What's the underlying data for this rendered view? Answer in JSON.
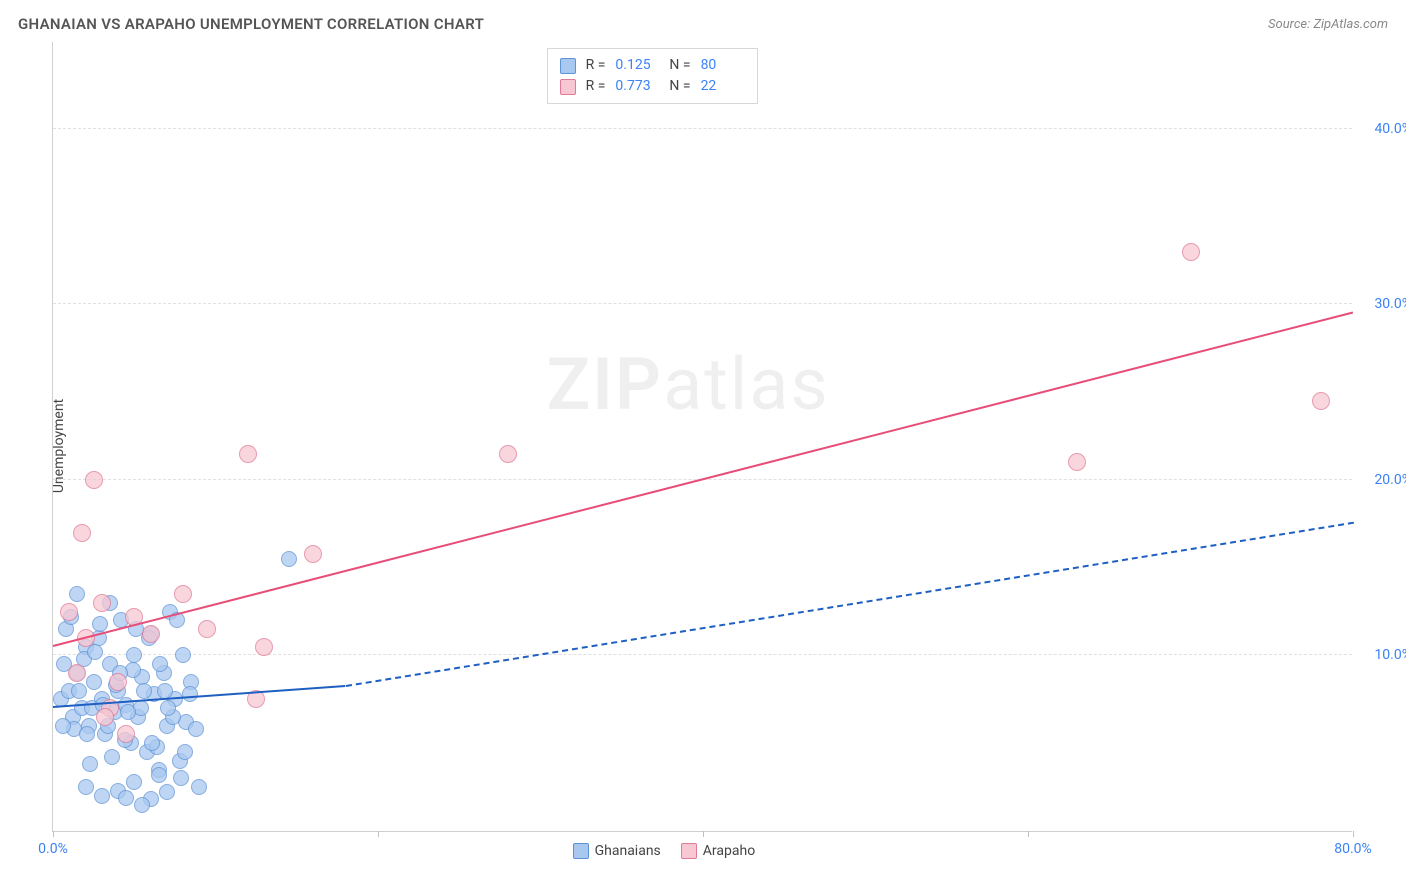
{
  "header": {
    "title": "GHANAIAN VS ARAPAHO UNEMPLOYMENT CORRELATION CHART",
    "source_prefix": "Source: ",
    "source_name": "ZipAtlas.com"
  },
  "watermark": {
    "part1": "ZIP",
    "part2": "atlas"
  },
  "axes": {
    "y_label": "Unemployment",
    "x_min": 0,
    "x_max": 80,
    "y_min": 0,
    "y_max": 45,
    "y_ticks": [
      10,
      20,
      30,
      40
    ],
    "y_tick_labels": [
      "10.0%",
      "20.0%",
      "30.0%",
      "40.0%"
    ],
    "x_ticks": [
      0,
      20,
      40,
      60,
      80
    ],
    "x_tick_labels_shown": {
      "0": "0.0%",
      "80": "80.0%"
    }
  },
  "series": {
    "ghanaians": {
      "label": "Ghanaians",
      "fill": "#a9c8f0",
      "stroke": "#5e93d6",
      "line_color": "#1e5fc2",
      "marker_r": 8,
      "R": "0.125",
      "N": "80",
      "trend": {
        "x1": 0,
        "y1": 7.0,
        "x2_solid": 18,
        "y2_solid": 8.2,
        "x2": 80,
        "y2": 17.5,
        "dashed_after_solid": true
      },
      "points": [
        [
          0.5,
          7.5
        ],
        [
          1.0,
          8.0
        ],
        [
          1.2,
          6.5
        ],
        [
          1.5,
          9.0
        ],
        [
          1.8,
          7.0
        ],
        [
          2.0,
          10.5
        ],
        [
          2.2,
          6.0
        ],
        [
          2.5,
          8.5
        ],
        [
          2.8,
          11.0
        ],
        [
          3.0,
          7.5
        ],
        [
          3.2,
          5.5
        ],
        [
          3.5,
          9.5
        ],
        [
          3.8,
          6.8
        ],
        [
          4.0,
          8.0
        ],
        [
          4.2,
          12.0
        ],
        [
          4.5,
          7.2
        ],
        [
          4.8,
          5.0
        ],
        [
          5.0,
          10.0
        ],
        [
          5.2,
          6.5
        ],
        [
          5.5,
          8.8
        ],
        [
          5.8,
          4.5
        ],
        [
          6.0,
          11.2
        ],
        [
          6.2,
          7.8
        ],
        [
          6.5,
          3.5
        ],
        [
          6.8,
          9.0
        ],
        [
          7.0,
          6.0
        ],
        [
          7.2,
          12.5
        ],
        [
          7.5,
          7.5
        ],
        [
          7.8,
          4.0
        ],
        [
          8.0,
          10.0
        ],
        [
          8.2,
          6.2
        ],
        [
          8.5,
          8.5
        ],
        [
          0.8,
          11.5
        ],
        [
          1.3,
          5.8
        ],
        [
          1.9,
          9.8
        ],
        [
          2.4,
          7.0
        ],
        [
          2.9,
          11.8
        ],
        [
          3.4,
          6.0
        ],
        [
          3.9,
          8.3
        ],
        [
          4.4,
          5.2
        ],
        [
          4.9,
          9.2
        ],
        [
          5.4,
          7.0
        ],
        [
          5.9,
          11.0
        ],
        [
          6.4,
          4.8
        ],
        [
          6.9,
          8.0
        ],
        [
          7.4,
          6.5
        ],
        [
          7.9,
          3.0
        ],
        [
          8.4,
          7.8
        ],
        [
          0.6,
          6.0
        ],
        [
          1.1,
          12.2
        ],
        [
          1.6,
          8.0
        ],
        [
          2.1,
          5.5
        ],
        [
          2.6,
          10.2
        ],
        [
          3.1,
          7.2
        ],
        [
          3.6,
          4.2
        ],
        [
          4.1,
          9.0
        ],
        [
          4.6,
          6.8
        ],
        [
          5.1,
          11.5
        ],
        [
          5.6,
          8.0
        ],
        [
          6.1,
          5.0
        ],
        [
          6.6,
          9.5
        ],
        [
          7.1,
          7.0
        ],
        [
          7.6,
          12.0
        ],
        [
          8.1,
          4.5
        ],
        [
          2.0,
          2.5
        ],
        [
          3.0,
          2.0
        ],
        [
          4.0,
          2.3
        ],
        [
          5.0,
          2.8
        ],
        [
          6.0,
          1.8
        ],
        [
          7.0,
          2.2
        ],
        [
          5.5,
          1.5
        ],
        [
          4.5,
          1.9
        ],
        [
          14.5,
          15.5
        ],
        [
          8.8,
          5.8
        ],
        [
          9.0,
          2.5
        ],
        [
          3.5,
          13.0
        ],
        [
          1.5,
          13.5
        ],
        [
          0.7,
          9.5
        ],
        [
          2.3,
          3.8
        ],
        [
          6.5,
          3.2
        ]
      ]
    },
    "arapaho": {
      "label": "Arapaho",
      "fill": "#f7c7d3",
      "stroke": "#e07a96",
      "line_color": "#e84d78",
      "marker_r": 9,
      "R": "0.773",
      "N": "22",
      "trend": {
        "x1": 0,
        "y1": 10.5,
        "x2": 80,
        "y2": 29.5,
        "dashed_after_solid": false
      },
      "points": [
        [
          1.0,
          12.5
        ],
        [
          1.5,
          9.0
        ],
        [
          2.0,
          11.0
        ],
        [
          3.0,
          13.0
        ],
        [
          3.5,
          7.0
        ],
        [
          4.0,
          8.5
        ],
        [
          5.0,
          12.2
        ],
        [
          6.0,
          11.2
        ],
        [
          8.0,
          13.5
        ],
        [
          9.5,
          11.5
        ],
        [
          2.5,
          20.0
        ],
        [
          1.8,
          17.0
        ],
        [
          12.0,
          21.5
        ],
        [
          13.0,
          10.5
        ],
        [
          12.5,
          7.5
        ],
        [
          16.0,
          15.8
        ],
        [
          28.0,
          21.5
        ],
        [
          63.0,
          21.0
        ],
        [
          70.0,
          33.0
        ],
        [
          78.0,
          24.5
        ],
        [
          3.2,
          6.5
        ],
        [
          4.5,
          5.5
        ]
      ]
    }
  },
  "legend_bottom": [
    "Ghanaians",
    "Arapaho"
  ],
  "colors": {
    "grid": "#e0e0e0",
    "axis": "#d0d0d0",
    "tick_text": "#3b82f6",
    "title_text": "#555555"
  }
}
